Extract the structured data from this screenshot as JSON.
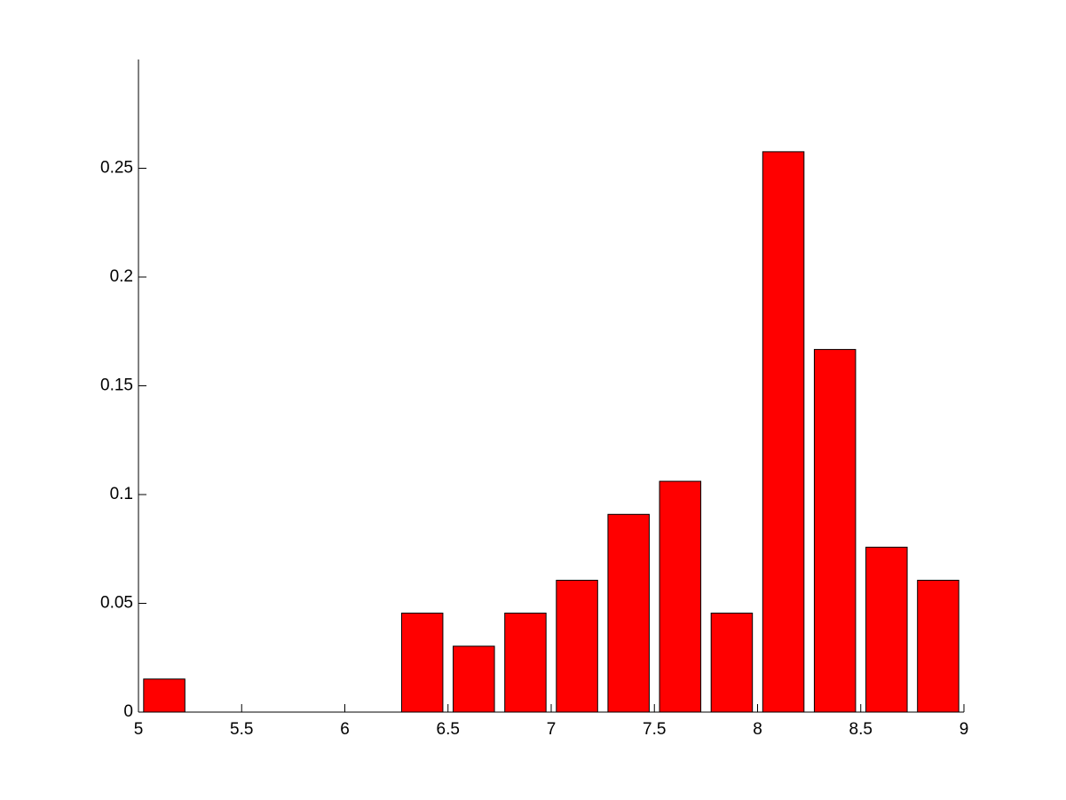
{
  "chart_data": {
    "type": "bar",
    "x": [
      5.125,
      5.375,
      5.625,
      5.875,
      6.125,
      6.375,
      6.625,
      6.875,
      7.125,
      7.375,
      7.625,
      7.875,
      8.125,
      8.375,
      8.625,
      8.875
    ],
    "values": [
      0.0152,
      0,
      0,
      0,
      0,
      0.0455,
      0.0303,
      0.0455,
      0.0606,
      0.0909,
      0.1061,
      0.0455,
      0.2576,
      0.1667,
      0.0758,
      0.0606
    ],
    "color": "#ff0000",
    "xlim": [
      5,
      9
    ],
    "xticks": [
      5,
      5.5,
      6,
      6.5,
      7,
      7.5,
      8,
      8.5,
      9
    ],
    "ylim": [
      0,
      0.3
    ],
    "yticks": [
      0,
      0.05,
      0.1,
      0.15,
      0.2,
      0.25
    ],
    "grid": false
  }
}
